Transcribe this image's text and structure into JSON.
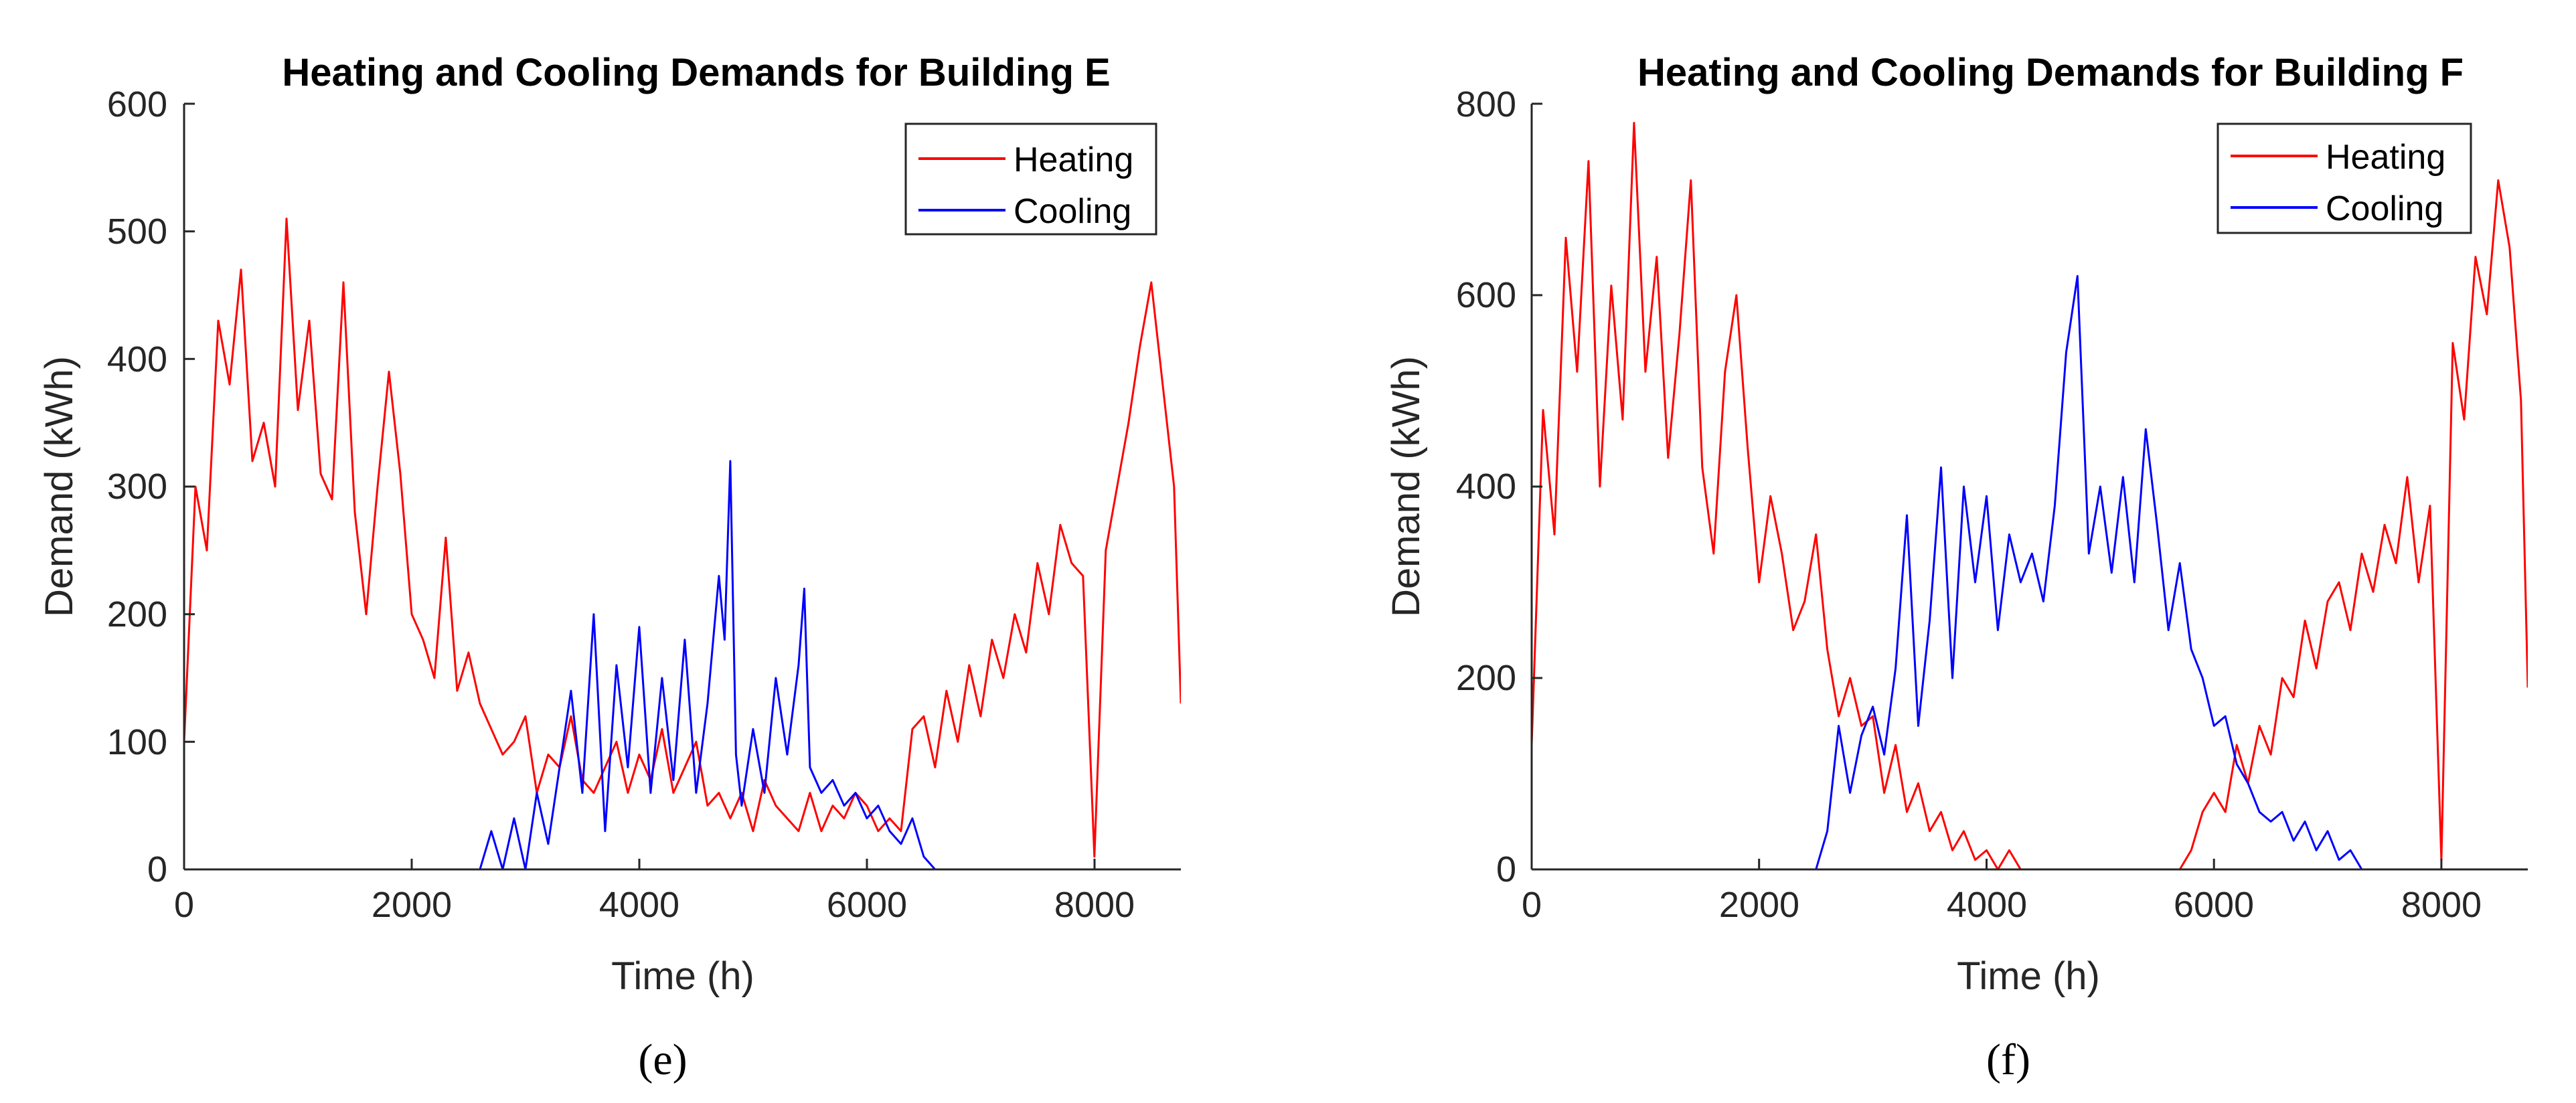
{
  "chart_data": [
    {
      "type": "line",
      "panel": "(e)",
      "title": "Heating and Cooling Demands for Building E",
      "xlabel": "Time (h)",
      "ylabel": "Demand (kWh)",
      "xlim": [
        0,
        8760
      ],
      "ylim": [
        0,
        600
      ],
      "xticks": [
        0,
        2000,
        4000,
        6000,
        8000
      ],
      "yticks": [
        0,
        100,
        200,
        300,
        400,
        500,
        600
      ],
      "legend_position": "top-right",
      "grid": false,
      "series": [
        {
          "name": "Heating",
          "color": "#ff0000",
          "x": [
            0,
            100,
            200,
            300,
            400,
            500,
            600,
            700,
            800,
            900,
            1000,
            1100,
            1200,
            1300,
            1400,
            1500,
            1600,
            1700,
            1800,
            1900,
            2000,
            2100,
            2200,
            2300,
            2400,
            2500,
            2600,
            2700,
            2800,
            2900,
            3000,
            3100,
            3200,
            3300,
            3400,
            3500,
            3600,
            3700,
            3800,
            3900,
            4000,
            4100,
            4200,
            4300,
            4400,
            4500,
            4600,
            4700,
            4800,
            4900,
            5000,
            5100,
            5200,
            5300,
            5400,
            5500,
            5600,
            5700,
            5800,
            5900,
            6000,
            6100,
            6200,
            6300,
            6400,
            6500,
            6600,
            6700,
            6800,
            6900,
            7000,
            7100,
            7200,
            7300,
            7400,
            7500,
            7600,
            7700,
            7800,
            7900,
            8000,
            8100,
            8200,
            8300,
            8400,
            8500,
            8600,
            8700,
            8760
          ],
          "values": [
            100,
            300,
            250,
            430,
            380,
            470,
            320,
            350,
            300,
            510,
            360,
            430,
            310,
            290,
            460,
            280,
            200,
            300,
            390,
            310,
            200,
            180,
            150,
            260,
            140,
            170,
            130,
            110,
            90,
            100,
            120,
            60,
            90,
            80,
            120,
            70,
            60,
            80,
            100,
            60,
            90,
            70,
            110,
            60,
            80,
            100,
            50,
            60,
            40,
            60,
            30,
            70,
            50,
            40,
            30,
            60,
            30,
            50,
            40,
            60,
            50,
            30,
            40,
            30,
            110,
            120,
            80,
            140,
            100,
            160,
            120,
            180,
            150,
            200,
            170,
            240,
            200,
            270,
            240,
            230,
            10,
            250,
            300,
            350,
            410,
            460,
            380,
            300,
            130
          ]
        },
        {
          "name": "Cooling",
          "color": "#0000ff",
          "x": [
            0,
            2600,
            2700,
            2800,
            2900,
            3000,
            3100,
            3200,
            3300,
            3400,
            3500,
            3600,
            3700,
            3800,
            3900,
            4000,
            4100,
            4200,
            4300,
            4400,
            4500,
            4600,
            4700,
            4750,
            4800,
            4850,
            4900,
            5000,
            5100,
            5200,
            5300,
            5400,
            5450,
            5500,
            5600,
            5700,
            5800,
            5900,
            6000,
            6100,
            6200,
            6300,
            6400,
            6500,
            6600,
            6700,
            8760
          ],
          "values": [
            0,
            0,
            30,
            0,
            40,
            0,
            60,
            20,
            80,
            140,
            60,
            200,
            30,
            160,
            80,
            190,
            60,
            150,
            70,
            180,
            60,
            130,
            230,
            180,
            320,
            90,
            50,
            110,
            60,
            150,
            90,
            160,
            220,
            80,
            60,
            70,
            50,
            60,
            40,
            50,
            30,
            20,
            40,
            10,
            0,
            0,
            0
          ]
        }
      ]
    },
    {
      "type": "line",
      "panel": "(f)",
      "title": "Heating and Cooling Demands for Building F",
      "xlabel": "Time (h)",
      "ylabel": "Demand (kWh)",
      "xlim": [
        0,
        8760
      ],
      "ylim": [
        0,
        800
      ],
      "xticks": [
        0,
        2000,
        4000,
        6000,
        8000
      ],
      "yticks": [
        0,
        200,
        400,
        600,
        800
      ],
      "legend_position": "top-right",
      "grid": false,
      "series": [
        {
          "name": "Heating",
          "color": "#ff0000",
          "x": [
            0,
            100,
            200,
            300,
            400,
            500,
            600,
            700,
            800,
            900,
            1000,
            1100,
            1200,
            1300,
            1400,
            1500,
            1600,
            1700,
            1800,
            1900,
            2000,
            2100,
            2200,
            2300,
            2400,
            2500,
            2600,
            2700,
            2800,
            2900,
            3000,
            3100,
            3200,
            3300,
            3400,
            3500,
            3600,
            3700,
            3800,
            3900,
            4000,
            4100,
            4200,
            4300,
            4400,
            4500,
            4600,
            4700,
            4800,
            4900,
            5000,
            5100,
            5200,
            5300,
            5400,
            5500,
            5600,
            5700,
            5800,
            5900,
            6000,
            6100,
            6200,
            6300,
            6400,
            6500,
            6600,
            6700,
            6800,
            6900,
            7000,
            7100,
            7200,
            7300,
            7400,
            7500,
            7600,
            7700,
            7800,
            7900,
            8000,
            8100,
            8200,
            8300,
            8400,
            8500,
            8600,
            8700,
            8760
          ],
          "values": [
            130,
            480,
            350,
            660,
            520,
            740,
            400,
            610,
            470,
            780,
            520,
            640,
            430,
            560,
            720,
            420,
            330,
            520,
            600,
            440,
            300,
            390,
            330,
            250,
            280,
            350,
            230,
            160,
            200,
            150,
            160,
            80,
            130,
            60,
            90,
            40,
            60,
            20,
            40,
            10,
            20,
            0,
            20,
            0,
            0,
            0,
            0,
            0,
            0,
            0,
            0,
            0,
            0,
            0,
            0,
            0,
            0,
            0,
            20,
            60,
            80,
            60,
            130,
            90,
            150,
            120,
            200,
            180,
            260,
            210,
            280,
            300,
            250,
            330,
            290,
            360,
            320,
            410,
            300,
            380,
            10,
            550,
            470,
            640,
            580,
            720,
            650,
            490,
            190
          ]
        },
        {
          "name": "Cooling",
          "color": "#0000ff",
          "x": [
            0,
            2500,
            2600,
            2700,
            2800,
            2900,
            3000,
            3100,
            3200,
            3300,
            3400,
            3500,
            3600,
            3700,
            3800,
            3900,
            4000,
            4100,
            4200,
            4300,
            4400,
            4500,
            4600,
            4700,
            4800,
            4900,
            5000,
            5100,
            5200,
            5300,
            5400,
            5500,
            5600,
            5700,
            5800,
            5900,
            6000,
            6100,
            6200,
            6300,
            6400,
            6500,
            6600,
            6700,
            6800,
            6900,
            7000,
            7100,
            7200,
            7300,
            8760
          ],
          "values": [
            0,
            0,
            40,
            150,
            80,
            140,
            170,
            120,
            210,
            370,
            150,
            260,
            420,
            200,
            400,
            300,
            390,
            250,
            350,
            300,
            330,
            280,
            380,
            540,
            620,
            330,
            400,
            310,
            410,
            300,
            460,
            360,
            250,
            320,
            230,
            200,
            150,
            160,
            110,
            90,
            60,
            50,
            60,
            30,
            50,
            20,
            40,
            10,
            20,
            0,
            0
          ]
        }
      ]
    }
  ],
  "captions": [
    "(e)",
    "(f)"
  ]
}
